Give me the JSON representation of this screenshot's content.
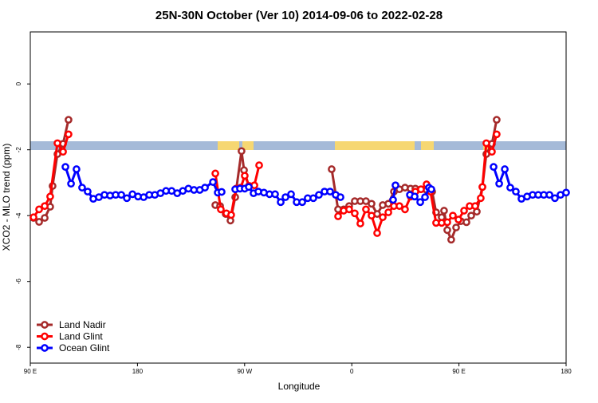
{
  "chart_data": {
    "type": "line",
    "title": "25N-30N October (Ver 10)   2014-09-06 to 2022-02-28",
    "x_label": "Longitude",
    "y_label": "XCO2 - MLO trend (ppm)",
    "xlim": [
      90,
      540
    ],
    "ylim": [
      -8.48,
      1.58
    ],
    "xticks": [
      {
        "value": 90,
        "label": "90 E"
      },
      180,
      {
        "value": 270,
        "label": "90 W"
      },
      {
        "value": 360,
        "label": "0"
      },
      {
        "value": 450,
        "label": "90 E"
      },
      {
        "value": 540,
        "label": "180"
      }
    ],
    "yticks": [
      0,
      -2,
      -4,
      -6,
      -8
    ],
    "legend": "bottom-left",
    "series": [
      {
        "name": "Land Nadir",
        "color": "#a52a2a",
        "x": [
          92.7,
          97.4,
          102.1,
          106.7,
          108.7,
          112.8,
          117.5,
          122.1,
          null,
          245.4,
          249.4,
          254.1,
          258.1,
          262.1,
          267.4,
          269.5,
          273.5,
          null,
          343.1,
          348.5,
          353.2,
          357.8,
          362.5,
          367.2,
          371.9,
          376.6,
          381.3,
          386,
          390.7,
          395.4,
          400,
          404.7,
          409.4,
          413.4,
          418.1,
          422.8,
          427.5,
          430.8,
          435.5,
          437.5,
          440.2,
          443.5,
          447.6,
          451.6,
          456.3,
          460.3,
          465,
          469.7,
          473,
          477.7,
          481.7
        ],
        "values": [
          -4.07,
          -4.19,
          -4.07,
          -3.73,
          -3.1,
          -2.13,
          -1.82,
          -1.09,
          null,
          -3.68,
          -3.71,
          -3.95,
          -4.15,
          -3.44,
          -2.04,
          -2.62,
          -3.1,
          null,
          -2.59,
          -3.81,
          -3.81,
          -3.71,
          -3.56,
          -3.56,
          -3.56,
          -3.64,
          -3.95,
          -3.68,
          -3.64,
          -3.27,
          -3.2,
          -3.15,
          -3.18,
          -3.18,
          -3.2,
          -3.22,
          -3.27,
          -3.9,
          -4.05,
          -3.85,
          -4.44,
          -4.73,
          -4.36,
          -4.17,
          -4.2,
          -4.0,
          -3.88,
          -3.13,
          -2.13,
          -1.82,
          -1.09
        ]
      },
      {
        "name": "Land Glint",
        "color": "#ff0000",
        "x": [
          92.7,
          97.4,
          102.1,
          106.7,
          112.8,
          117.5,
          122.1,
          null,
          245.4,
          250,
          254.7,
          258.7,
          262.8,
          266.8,
          270.1,
          274.1,
          278.2,
          282.2,
          null,
          348.5,
          353.2,
          357.8,
          362.5,
          367.2,
          371.9,
          376.6,
          381.3,
          386,
          390.7,
          395.4,
          400,
          404.7,
          409.4,
          413.4,
          418.1,
          422.8,
          426.1,
          430.8,
          435.5,
          440.2,
          444.9,
          449.6,
          454.3,
          459,
          463.6,
          468.3,
          469.7,
          473,
          477.7,
          481.7
        ],
        "values": [
          -4.05,
          -3.81,
          -3.71,
          -3.42,
          -1.8,
          -2.06,
          -1.53,
          null,
          -2.72,
          -3.81,
          -3.93,
          -3.98,
          -3.18,
          -3.15,
          -2.79,
          -3.1,
          -3.08,
          -2.47,
          null,
          -4.02,
          -3.85,
          -3.81,
          -3.93,
          -4.24,
          -3.81,
          -4.0,
          -4.53,
          -4.05,
          -3.9,
          -3.71,
          -3.71,
          -3.81,
          -3.42,
          -3.27,
          -3.2,
          -3.05,
          -3.27,
          -4.22,
          -4.22,
          -4.2,
          -4.0,
          -4.12,
          -3.85,
          -3.71,
          -3.71,
          -3.47,
          -3.13,
          -1.8,
          -2.06,
          -1.53
        ]
      },
      {
        "name": "Ocean Glint",
        "color": "#0000ff",
        "x": [
          119.5,
          124.2,
          128.8,
          133.5,
          138.2,
          142.9,
          147.6,
          152.3,
          157,
          161.7,
          166.4,
          171.1,
          175.8,
          180.5,
          185.2,
          189.9,
          194.6,
          199.3,
          204,
          208.7,
          213.4,
          218.1,
          222.8,
          227.5,
          232.3,
          236.7,
          243.4,
          247.4,
          250.7,
          null,
          262.1,
          266.1,
          270.1,
          273.5,
          277.5,
          281.5,
          286.2,
          290.9,
          295.6,
          300.3,
          304.3,
          309,
          313.7,
          318.4,
          323,
          327.7,
          332.4,
          337.1,
          341.8,
          346.5,
          350.5,
          null,
          394.7,
          396.7,
          null,
          408.8,
          412.8,
          417.5,
          421.5,
          424.8,
          426.8,
          null,
          479.1,
          483.8,
          488.5,
          493.1,
          497.8,
          502.5,
          507.2,
          511.9,
          516.6,
          521.3,
          526,
          530.6,
          535.3,
          540
        ],
        "values": [
          -2.52,
          -3.03,
          -2.59,
          -3.15,
          -3.27,
          -3.49,
          -3.44,
          -3.37,
          -3.39,
          -3.37,
          -3.37,
          -3.47,
          -3.35,
          -3.42,
          -3.44,
          -3.37,
          -3.37,
          -3.32,
          -3.25,
          -3.25,
          -3.32,
          -3.25,
          -3.18,
          -3.22,
          -3.22,
          -3.15,
          -2.98,
          -3.3,
          -3.28,
          null,
          -3.2,
          -3.18,
          -3.18,
          -3.13,
          -3.32,
          -3.27,
          -3.3,
          -3.35,
          -3.35,
          -3.59,
          -3.44,
          -3.35,
          -3.59,
          -3.59,
          -3.47,
          -3.47,
          -3.37,
          -3.27,
          -3.27,
          -3.37,
          -3.44,
          null,
          -3.52,
          -3.08,
          null,
          -3.37,
          -3.42,
          -3.59,
          -3.44,
          -3.15,
          -3.2,
          null,
          -2.52,
          -3.03,
          -2.59,
          -3.15,
          -3.27,
          -3.49,
          -3.42,
          -3.37,
          -3.37,
          -3.37,
          -3.37,
          -3.47,
          -3.37,
          -3.3
        ]
      }
    ]
  }
}
